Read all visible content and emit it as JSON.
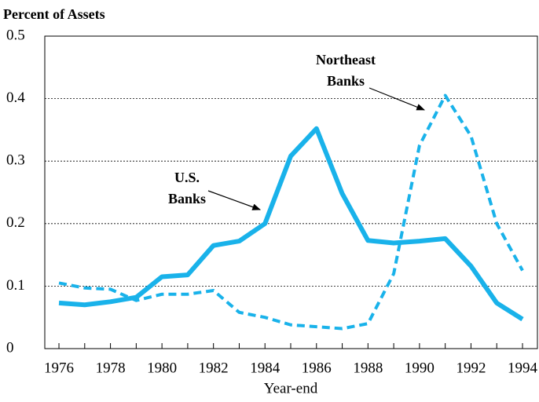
{
  "chart_data": {
    "type": "line",
    "ylabel": "Percent of Assets",
    "xlabel": "Year-end",
    "x": [
      1976,
      1977,
      1978,
      1979,
      1980,
      1981,
      1982,
      1983,
      1984,
      1985,
      1986,
      1987,
      1988,
      1989,
      1990,
      1991,
      1992,
      1993,
      1994
    ],
    "series": [
      {
        "color": "#19b2ea",
        "dashed": false,
        "values": [
          0.073,
          0.07,
          0.075,
          0.082,
          0.115,
          0.118,
          0.165,
          0.172,
          0.2,
          0.308,
          0.352,
          0.248,
          0.173,
          0.169,
          0.172,
          0.176,
          0.132,
          0.073,
          0.047
        ]
      },
      {
        "color": "#19b2ea",
        "dashed": true,
        "values": [
          0.105,
          0.097,
          0.095,
          0.077,
          0.087,
          0.087,
          0.093,
          0.058,
          0.05,
          0.038,
          0.035,
          0.032,
          0.04,
          0.12,
          0.325,
          0.405,
          0.34,
          0.2,
          0.125
        ]
      }
    ],
    "annotations": [
      {
        "lines": [
          "U.S.",
          "Banks"
        ]
      },
      {
        "lines": [
          "Northeast",
          "Banks"
        ]
      }
    ],
    "xlim": [
      1975.45,
      1994.58
    ],
    "ylim": [
      0,
      0.5
    ],
    "xticks": [
      1976,
      1978,
      1980,
      1982,
      1984,
      1986,
      1988,
      1990,
      1992,
      1994
    ],
    "yticks": [
      0,
      0.1,
      0.2,
      0.3,
      0.4,
      0.5
    ],
    "grid": true
  }
}
